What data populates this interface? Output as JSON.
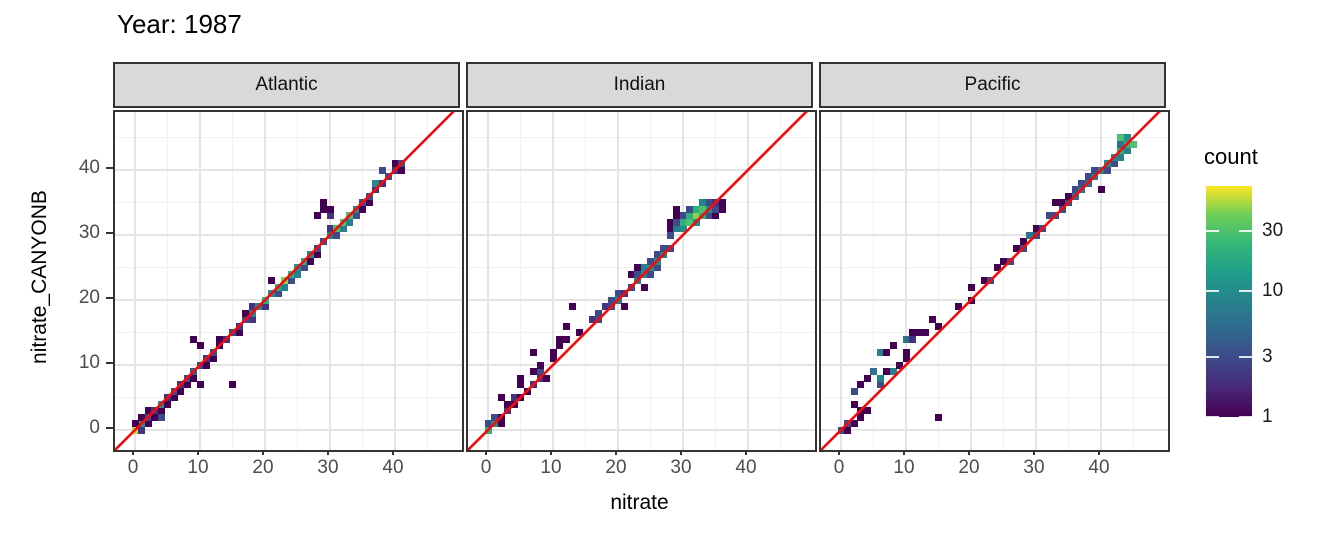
{
  "title": "Year: 1987",
  "axes": {
    "x_label": "nitrate",
    "y_label": "nitrate_CANYONB",
    "x_ticks": [
      0,
      10,
      20,
      30,
      40
    ],
    "y_ticks": [
      0,
      10,
      20,
      30,
      40
    ],
    "x_minor_ticks": [
      5,
      15,
      25,
      35,
      45
    ],
    "y_minor_ticks": [
      5,
      15,
      25,
      35,
      45
    ],
    "xlim": [
      -3.1,
      50.3
    ],
    "ylim": [
      -3.1,
      48.9
    ]
  },
  "legend": {
    "title": "count",
    "tick_values": [
      30,
      10,
      3,
      1
    ],
    "scale": "log",
    "domain": [
      1,
      69
    ],
    "palette": "viridis",
    "viridis_stops": [
      "#440154",
      "#482878",
      "#3e4a89",
      "#31688e",
      "#26828e",
      "#1f9e89",
      "#35b779",
      "#6ece58",
      "#fde725"
    ]
  },
  "identity_line": {
    "equation": "y = x",
    "color": "#f20c0c"
  },
  "chart_data": {
    "type": "heatmap",
    "subtype": "geom_bin2d",
    "title": "Year: 1987",
    "xlabel": "nitrate",
    "ylabel": "nitrate_CANYONB",
    "binwidth": 1,
    "color_scale": "viridis log(count), 1 to ~69",
    "facets": [
      {
        "label": "Atlantic",
        "bins": [
          [
            0,
            0,
            55
          ],
          [
            1,
            1,
            12
          ],
          [
            0,
            1,
            1
          ],
          [
            1,
            0,
            2
          ],
          [
            1,
            2,
            1
          ],
          [
            2,
            1,
            1
          ],
          [
            2,
            2,
            3
          ],
          [
            2,
            3,
            1
          ],
          [
            3,
            2,
            1
          ],
          [
            3,
            3,
            2
          ],
          [
            4,
            2,
            3
          ],
          [
            4,
            3,
            1
          ],
          [
            4,
            4,
            10
          ],
          [
            5,
            4,
            1
          ],
          [
            5,
            5,
            2
          ],
          [
            6,
            5,
            1
          ],
          [
            6,
            6,
            3
          ],
          [
            7,
            6,
            1
          ],
          [
            7,
            7,
            2
          ],
          [
            8,
            7,
            1
          ],
          [
            8,
            8,
            3
          ],
          [
            9,
            8,
            1
          ],
          [
            9,
            9,
            4
          ],
          [
            10,
            7,
            1
          ],
          [
            10,
            10,
            3
          ],
          [
            10,
            13,
            1
          ],
          [
            9,
            14,
            1
          ],
          [
            11,
            10,
            1
          ],
          [
            11,
            11,
            2
          ],
          [
            12,
            11,
            1
          ],
          [
            12,
            12,
            3
          ],
          [
            13,
            13,
            1
          ],
          [
            13,
            14,
            1
          ],
          [
            14,
            14,
            2
          ],
          [
            15,
            7,
            1
          ],
          [
            15,
            15,
            3
          ],
          [
            16,
            15,
            1
          ],
          [
            16,
            16,
            2
          ],
          [
            17,
            17,
            3
          ],
          [
            17,
            18,
            1
          ],
          [
            18,
            17,
            2
          ],
          [
            18,
            18,
            8
          ],
          [
            18,
            19,
            2
          ],
          [
            19,
            19,
            10
          ],
          [
            20,
            19,
            2
          ],
          [
            20,
            20,
            20
          ],
          [
            21,
            21,
            10
          ],
          [
            21,
            23,
            1
          ],
          [
            22,
            21,
            3
          ],
          [
            22,
            22,
            20
          ],
          [
            23,
            22,
            8
          ],
          [
            23,
            23,
            45
          ],
          [
            24,
            23,
            3
          ],
          [
            24,
            24,
            20
          ],
          [
            25,
            24,
            8
          ],
          [
            25,
            25,
            12
          ],
          [
            26,
            25,
            3
          ],
          [
            26,
            26,
            20
          ],
          [
            27,
            26,
            1
          ],
          [
            27,
            27,
            10
          ],
          [
            28,
            27,
            1
          ],
          [
            28,
            28,
            3
          ],
          [
            29,
            29,
            3
          ],
          [
            28,
            33,
            1
          ],
          [
            29,
            34,
            1
          ],
          [
            29,
            35,
            1
          ],
          [
            30,
            33,
            2
          ],
          [
            30,
            34,
            1
          ],
          [
            30,
            30,
            8
          ],
          [
            30,
            31,
            2
          ],
          [
            31,
            30,
            3
          ],
          [
            31,
            31,
            30
          ],
          [
            32,
            31,
            8
          ],
          [
            32,
            32,
            30
          ],
          [
            33,
            32,
            8
          ],
          [
            33,
            33,
            30
          ],
          [
            34,
            33,
            3
          ],
          [
            34,
            34,
            10
          ],
          [
            35,
            34,
            1
          ],
          [
            35,
            35,
            3
          ],
          [
            36,
            35,
            1
          ],
          [
            36,
            36,
            3
          ],
          [
            37,
            37,
            2
          ],
          [
            37,
            38,
            10
          ],
          [
            38,
            38,
            2
          ],
          [
            38,
            40,
            3
          ],
          [
            39,
            39,
            3
          ],
          [
            40,
            40,
            2
          ],
          [
            40,
            41,
            1
          ],
          [
            41,
            40,
            1
          ],
          [
            41,
            41,
            3
          ]
        ]
      },
      {
        "label": "Indian",
        "bins": [
          [
            0,
            0,
            20
          ],
          [
            0,
            1,
            3
          ],
          [
            1,
            1,
            10
          ],
          [
            1,
            2,
            3
          ],
          [
            2,
            1,
            1
          ],
          [
            2,
            2,
            1
          ],
          [
            2,
            5,
            1
          ],
          [
            3,
            3,
            2
          ],
          [
            3,
            4,
            1
          ],
          [
            4,
            4,
            1
          ],
          [
            4,
            5,
            2
          ],
          [
            5,
            5,
            1
          ],
          [
            5,
            7,
            1
          ],
          [
            5,
            8,
            1
          ],
          [
            6,
            6,
            1
          ],
          [
            7,
            7,
            2
          ],
          [
            7,
            9,
            1
          ],
          [
            7,
            12,
            1
          ],
          [
            8,
            8,
            2
          ],
          [
            8,
            9,
            3
          ],
          [
            8,
            10,
            1
          ],
          [
            9,
            8,
            1
          ],
          [
            10,
            11,
            1
          ],
          [
            10,
            12,
            1
          ],
          [
            11,
            13,
            1
          ],
          [
            11,
            14,
            1
          ],
          [
            12,
            14,
            1
          ],
          [
            12,
            16,
            1
          ],
          [
            13,
            19,
            1
          ],
          [
            14,
            15,
            1
          ],
          [
            16,
            17,
            2
          ],
          [
            17,
            17,
            3
          ],
          [
            17,
            18,
            3
          ],
          [
            18,
            19,
            2
          ],
          [
            19,
            19,
            3
          ],
          [
            19,
            20,
            3
          ],
          [
            20,
            20,
            8
          ],
          [
            20,
            21,
            3
          ],
          [
            21,
            19,
            1
          ],
          [
            21,
            21,
            2
          ],
          [
            22,
            22,
            3
          ],
          [
            22,
            24,
            1
          ],
          [
            23,
            23,
            8
          ],
          [
            23,
            24,
            3
          ],
          [
            23,
            25,
            1
          ],
          [
            24,
            22,
            1
          ],
          [
            24,
            24,
            10
          ],
          [
            24,
            25,
            8
          ],
          [
            25,
            24,
            3
          ],
          [
            25,
            25,
            12
          ],
          [
            25,
            26,
            3
          ],
          [
            26,
            25,
            3
          ],
          [
            26,
            26,
            10
          ],
          [
            26,
            27,
            3
          ],
          [
            27,
            27,
            8
          ],
          [
            27,
            28,
            3
          ],
          [
            28,
            28,
            3
          ],
          [
            28,
            30,
            3
          ],
          [
            28,
            31,
            1
          ],
          [
            28,
            32,
            1
          ],
          [
            29,
            31,
            8
          ],
          [
            29,
            32,
            3
          ],
          [
            29,
            33,
            1
          ],
          [
            29,
            34,
            1
          ],
          [
            30,
            31,
            10
          ],
          [
            30,
            32,
            20
          ],
          [
            30,
            33,
            3
          ],
          [
            31,
            32,
            30
          ],
          [
            31,
            33,
            20
          ],
          [
            31,
            34,
            3
          ],
          [
            32,
            32,
            10
          ],
          [
            32,
            33,
            45
          ],
          [
            32,
            34,
            20
          ],
          [
            33,
            33,
            20
          ],
          [
            33,
            34,
            30
          ],
          [
            33,
            35,
            8
          ],
          [
            34,
            33,
            3
          ],
          [
            34,
            34,
            10
          ],
          [
            34,
            35,
            3
          ],
          [
            35,
            33,
            1
          ],
          [
            35,
            34,
            3
          ],
          [
            35,
            35,
            2
          ],
          [
            36,
            34,
            1
          ],
          [
            36,
            35,
            1
          ]
        ]
      },
      {
        "label": "Pacific",
        "bins": [
          [
            0,
            0,
            3
          ],
          [
            1,
            0,
            1
          ],
          [
            1,
            1,
            3
          ],
          [
            2,
            1,
            1
          ],
          [
            2,
            4,
            1
          ],
          [
            2,
            6,
            3
          ],
          [
            3,
            2,
            1
          ],
          [
            3,
            3,
            1
          ],
          [
            3,
            7,
            1
          ],
          [
            4,
            3,
            1
          ],
          [
            4,
            8,
            1
          ],
          [
            5,
            9,
            6
          ],
          [
            6,
            7,
            3
          ],
          [
            6,
            8,
            8
          ],
          [
            6,
            12,
            8
          ],
          [
            7,
            9,
            1
          ],
          [
            7,
            12,
            1
          ],
          [
            8,
            9,
            8
          ],
          [
            8,
            13,
            1
          ],
          [
            9,
            10,
            1
          ],
          [
            10,
            11,
            1
          ],
          [
            10,
            12,
            1
          ],
          [
            10,
            14,
            6
          ],
          [
            11,
            14,
            2
          ],
          [
            11,
            15,
            1
          ],
          [
            12,
            15,
            1
          ],
          [
            13,
            15,
            1
          ],
          [
            14,
            17,
            1
          ],
          [
            15,
            2,
            1
          ],
          [
            15,
            16,
            1
          ],
          [
            18,
            19,
            1
          ],
          [
            20,
            20,
            1
          ],
          [
            20,
            22,
            1
          ],
          [
            22,
            23,
            1
          ],
          [
            23,
            23,
            3
          ],
          [
            24,
            25,
            1
          ],
          [
            25,
            26,
            1
          ],
          [
            26,
            26,
            3
          ],
          [
            27,
            28,
            1
          ],
          [
            28,
            28,
            3
          ],
          [
            28,
            29,
            1
          ],
          [
            29,
            30,
            6
          ],
          [
            30,
            30,
            3
          ],
          [
            30,
            31,
            1
          ],
          [
            31,
            31,
            3
          ],
          [
            32,
            33,
            3
          ],
          [
            33,
            33,
            3
          ],
          [
            33,
            35,
            1
          ],
          [
            34,
            34,
            3
          ],
          [
            34,
            35,
            1
          ],
          [
            35,
            35,
            3
          ],
          [
            35,
            36,
            1
          ],
          [
            36,
            36,
            6
          ],
          [
            36,
            37,
            3
          ],
          [
            37,
            37,
            6
          ],
          [
            37,
            38,
            3
          ],
          [
            38,
            38,
            6
          ],
          [
            38,
            39,
            3
          ],
          [
            39,
            39,
            8
          ],
          [
            39,
            40,
            3
          ],
          [
            40,
            37,
            1
          ],
          [
            40,
            40,
            8
          ],
          [
            41,
            40,
            3
          ],
          [
            41,
            41,
            10
          ],
          [
            42,
            41,
            3
          ],
          [
            42,
            42,
            10
          ],
          [
            43,
            42,
            8
          ],
          [
            43,
            43,
            20
          ],
          [
            43,
            44,
            6
          ],
          [
            43,
            45,
            30
          ],
          [
            44,
            43,
            8
          ],
          [
            44,
            44,
            20
          ],
          [
            44,
            45,
            10
          ],
          [
            45,
            44,
            30
          ]
        ]
      }
    ]
  }
}
